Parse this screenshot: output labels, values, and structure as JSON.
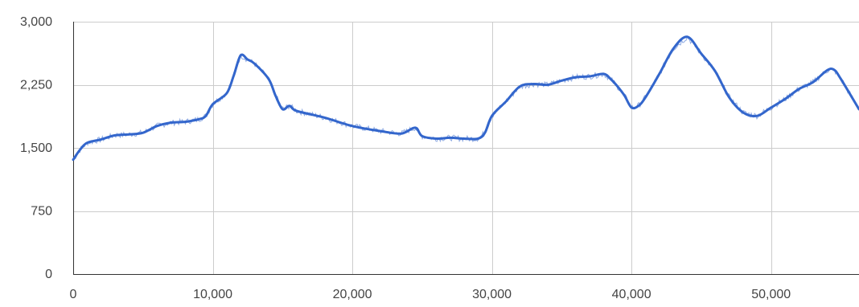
{
  "chart_data": {
    "type": "line",
    "title": "",
    "xlabel": "",
    "ylabel": "",
    "xlim": [
      0,
      56300
    ],
    "ylim": [
      0,
      3000
    ],
    "grid": true,
    "legend": "none",
    "series_color": "#3366cc",
    "x_ticks": [
      0,
      10000,
      20000,
      30000,
      40000,
      50000
    ],
    "x_tick_labels": [
      "0",
      "10,000",
      "20,000",
      "30,000",
      "40,000",
      "50,000"
    ],
    "y_ticks": [
      0,
      750,
      1500,
      2250,
      3000
    ],
    "y_tick_labels": [
      "0",
      "750",
      "1,500",
      "2,250",
      "3,000"
    ],
    "series": [
      {
        "x": [
          0,
          500,
          1000,
          2000,
          3000,
          4000,
          5000,
          6000,
          7000,
          8000,
          9000,
          9500,
          10000,
          11000,
          11500,
          12000,
          12500,
          13000,
          14000,
          14500,
          15000,
          15500,
          16000,
          18000,
          20000,
          22000,
          23500,
          24500,
          25000,
          26000,
          27000,
          28000,
          29000,
          29500,
          30000,
          31000,
          32000,
          33000,
          34000,
          35000,
          36000,
          37000,
          38000,
          38500,
          39000,
          39500,
          40000,
          40500,
          41000,
          42000,
          43000,
          44000,
          45000,
          46000,
          47000,
          48000,
          49000,
          50000,
          51000,
          52000,
          53000,
          54000,
          54500,
          55000,
          56300
        ],
        "y": [
          1360,
          1480,
          1560,
          1600,
          1650,
          1660,
          1680,
          1760,
          1800,
          1810,
          1840,
          1880,
          2020,
          2150,
          2360,
          2600,
          2550,
          2500,
          2320,
          2120,
          1960,
          2000,
          1940,
          1860,
          1760,
          1700,
          1670,
          1740,
          1640,
          1610,
          1620,
          1610,
          1610,
          1680,
          1880,
          2050,
          2230,
          2260,
          2250,
          2300,
          2340,
          2350,
          2380,
          2320,
          2230,
          2120,
          1980,
          2000,
          2100,
          2380,
          2680,
          2820,
          2620,
          2410,
          2100,
          1920,
          1880,
          1980,
          2080,
          2200,
          2280,
          2420,
          2430,
          2320,
          1960
        ]
      }
    ]
  }
}
